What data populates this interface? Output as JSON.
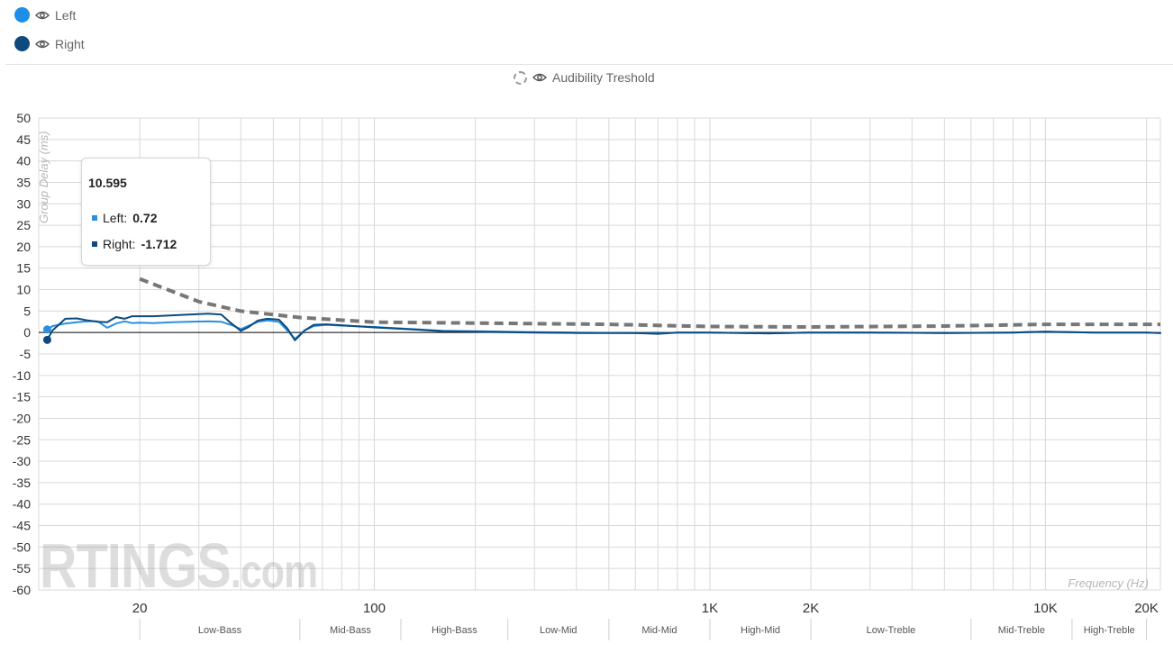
{
  "legend": {
    "left": {
      "label": "Left",
      "color": "#1e8ee8",
      "icon": "eye-icon"
    },
    "right": {
      "label": "Right",
      "color": "#0e4a7e",
      "icon": "eye-icon"
    },
    "threshold": {
      "label": "Audibility Treshold",
      "icon": "eye-icon"
    }
  },
  "tooltip": {
    "title": "10.595",
    "left_label": "Left:",
    "left_value": "0.72",
    "right_label": "Right:",
    "right_value": "-1.712"
  },
  "watermark": {
    "brand": "RTINGS",
    "domain": ".com"
  },
  "chart_data": {
    "type": "line",
    "title": "",
    "xlabel": "Frequency (Hz)",
    "ylabel": "Group Delay (ms)",
    "x_scale": "log",
    "xlim": [
      10,
      22000
    ],
    "ylim": [
      -60,
      50
    ],
    "y_ticks": [
      50,
      45,
      40,
      35,
      30,
      25,
      20,
      15,
      10,
      5,
      0,
      -5,
      -10,
      -15,
      -20,
      -25,
      -30,
      -35,
      -40,
      -45,
      -50,
      -55,
      -60
    ],
    "x_tick_labels": [
      {
        "value": 20,
        "label": "20"
      },
      {
        "value": 100,
        "label": "100"
      },
      {
        "value": 1000,
        "label": "1K"
      },
      {
        "value": 2000,
        "label": "2K"
      },
      {
        "value": 10000,
        "label": "10K"
      },
      {
        "value": 20000,
        "label": "20K"
      }
    ],
    "bands": [
      {
        "label": "Low-Bass",
        "from": 20,
        "to": 60
      },
      {
        "label": "Mid-Bass",
        "from": 60,
        "to": 120
      },
      {
        "label": "High-Bass",
        "from": 120,
        "to": 250
      },
      {
        "label": "Low-Mid",
        "from": 250,
        "to": 500
      },
      {
        "label": "Mid-Mid",
        "from": 500,
        "to": 1000
      },
      {
        "label": "High-Mid",
        "from": 1000,
        "to": 2000
      },
      {
        "label": "Low-Treble",
        "from": 2000,
        "to": 6000
      },
      {
        "label": "Mid-Treble",
        "from": 6000,
        "to": 12000
      },
      {
        "label": "High-Treble",
        "from": 12000,
        "to": 20000
      }
    ],
    "grid": true,
    "series": [
      {
        "name": "Left",
        "color": "#2b8fe0",
        "points": [
          [
            10.6,
            0.72
          ],
          [
            11,
            1.5
          ],
          [
            12,
            2.1
          ],
          [
            13,
            2.4
          ],
          [
            14,
            2.6
          ],
          [
            15,
            2.6
          ],
          [
            16,
            1.1
          ],
          [
            17,
            2.1
          ],
          [
            18,
            2.6
          ],
          [
            19,
            2.2
          ],
          [
            20,
            2.3
          ],
          [
            22,
            2.2
          ],
          [
            25,
            2.4
          ],
          [
            28,
            2.5
          ],
          [
            32,
            2.6
          ],
          [
            35,
            2.5
          ],
          [
            38,
            1.6
          ],
          [
            40,
            0.8
          ],
          [
            42,
            1.5
          ],
          [
            45,
            2.5
          ],
          [
            48,
            2.8
          ],
          [
            52,
            2.5
          ],
          [
            55,
            0.5
          ],
          [
            58,
            -1.5
          ],
          [
            62,
            0.5
          ],
          [
            66,
            1.5
          ],
          [
            72,
            1.8
          ],
          [
            80,
            1.6
          ],
          [
            100,
            1.3
          ],
          [
            130,
            0.8
          ],
          [
            160,
            0.4
          ],
          [
            200,
            0.3
          ],
          [
            300,
            0.1
          ],
          [
            400,
            0
          ],
          [
            600,
            -0.1
          ],
          [
            700,
            -0.2
          ],
          [
            800,
            0
          ],
          [
            1000,
            0
          ],
          [
            1500,
            -0.2
          ],
          [
            2000,
            0
          ],
          [
            3000,
            0
          ],
          [
            5000,
            -0.1
          ],
          [
            8000,
            0
          ],
          [
            10000,
            0.2
          ],
          [
            14000,
            0
          ],
          [
            20000,
            0
          ],
          [
            22000,
            -0.1
          ]
        ]
      },
      {
        "name": "Right",
        "color": "#0d4a7d",
        "points": [
          [
            10.6,
            -1.712
          ],
          [
            11,
            0.5
          ],
          [
            12,
            3.2
          ],
          [
            13,
            3.3
          ],
          [
            14,
            2.8
          ],
          [
            15,
            2.5
          ],
          [
            16,
            2.4
          ],
          [
            17,
            3.6
          ],
          [
            18,
            3.2
          ],
          [
            19,
            3.8
          ],
          [
            20,
            3.8
          ],
          [
            22,
            3.8
          ],
          [
            25,
            4.0
          ],
          [
            28,
            4.2
          ],
          [
            32,
            4.4
          ],
          [
            35,
            4.2
          ],
          [
            37,
            2.5
          ],
          [
            40,
            0.4
          ],
          [
            42,
            1.2
          ],
          [
            45,
            2.8
          ],
          [
            48,
            3.2
          ],
          [
            52,
            3.0
          ],
          [
            55,
            1.0
          ],
          [
            58,
            -1.8
          ],
          [
            62,
            0.5
          ],
          [
            66,
            1.8
          ],
          [
            72,
            1.9
          ],
          [
            80,
            1.7
          ],
          [
            100,
            1.2
          ],
          [
            130,
            0.7
          ],
          [
            160,
            0.3
          ],
          [
            200,
            0.2
          ],
          [
            300,
            0
          ],
          [
            400,
            -0.1
          ],
          [
            600,
            -0.1
          ],
          [
            700,
            -0.3
          ],
          [
            800,
            0
          ],
          [
            1000,
            0
          ],
          [
            1500,
            -0.2
          ],
          [
            2000,
            0
          ],
          [
            3000,
            0
          ],
          [
            5000,
            -0.1
          ],
          [
            8000,
            0
          ],
          [
            10000,
            0.2
          ],
          [
            14000,
            0
          ],
          [
            20000,
            0
          ],
          [
            22000,
            -0.1
          ]
        ]
      },
      {
        "name": "Audibility Treshold",
        "color": "#777777",
        "dashed": true,
        "points": [
          [
            20,
            12.5
          ],
          [
            30,
            7.2
          ],
          [
            40,
            5.0
          ],
          [
            60,
            3.5
          ],
          [
            100,
            2.4
          ],
          [
            200,
            2.2
          ],
          [
            500,
            1.9
          ],
          [
            1000,
            1.4
          ],
          [
            2000,
            1.3
          ],
          [
            5000,
            1.5
          ],
          [
            10000,
            1.9
          ],
          [
            22000,
            1.9
          ]
        ]
      }
    ]
  }
}
